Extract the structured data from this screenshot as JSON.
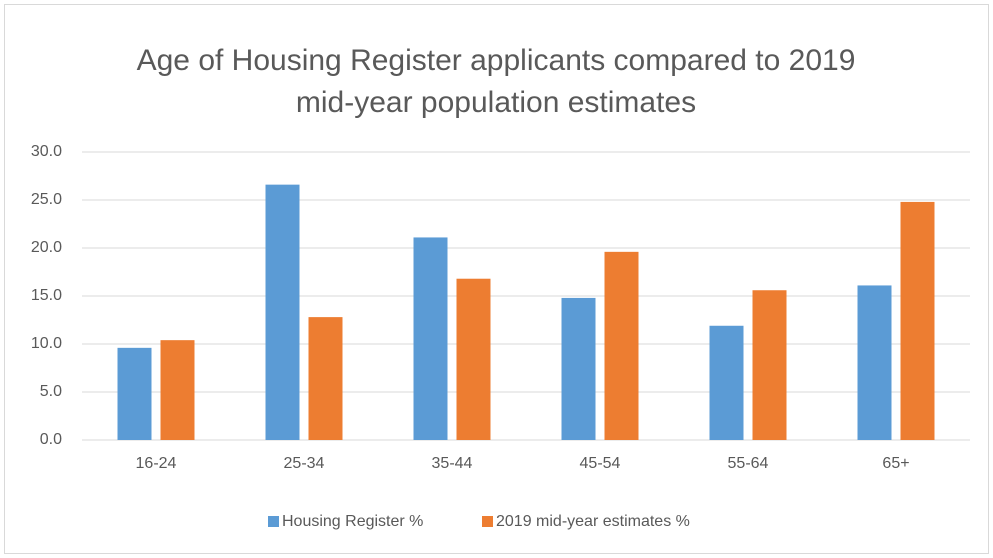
{
  "chart_data": {
    "type": "bar",
    "title": "Age of Housing Register applicants compared to 2019 mid-year population estimates",
    "categories": [
      "16-24",
      "25-34",
      "35-44",
      "45-54",
      "55-64",
      "65+"
    ],
    "series": [
      {
        "name": "Housing Register %",
        "color": "#5b9bd5",
        "values": [
          9.6,
          26.6,
          21.1,
          14.8,
          11.9,
          16.1
        ]
      },
      {
        "name": "2019 mid-year estimates %",
        "color": "#ed7d31",
        "values": [
          10.4,
          12.8,
          16.8,
          19.6,
          15.6,
          24.8
        ]
      }
    ],
    "ylim": [
      0,
      30
    ],
    "yticks": [
      {
        "value": 0,
        "label": "0.0"
      },
      {
        "value": 5,
        "label": "5.0"
      },
      {
        "value": 10,
        "label": "10.0"
      },
      {
        "value": 15,
        "label": "15.0"
      },
      {
        "value": 20,
        "label": "20.0"
      },
      {
        "value": 25,
        "label": "25.0"
      },
      {
        "value": 30,
        "label": "30.0"
      }
    ],
    "grid": true,
    "legend": "bottom"
  }
}
